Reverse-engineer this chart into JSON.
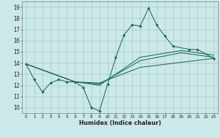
{
  "xlabel": "Humidex (Indice chaleur)",
  "bg_color": "#cce8e8",
  "line_color": "#1e6b5e",
  "grid_color": "#aacece",
  "xlim": [
    -0.5,
    23.5
  ],
  "ylim": [
    9.5,
    19.5
  ],
  "xticks": [
    0,
    1,
    2,
    3,
    4,
    5,
    6,
    7,
    8,
    9,
    10,
    11,
    12,
    13,
    14,
    15,
    16,
    17,
    18,
    19,
    20,
    21,
    22,
    23
  ],
  "yticks": [
    10,
    11,
    12,
    13,
    14,
    15,
    16,
    17,
    18,
    19
  ],
  "series0_x": [
    0,
    1,
    2,
    3,
    4,
    5,
    6,
    7,
    8,
    9,
    10,
    11,
    12,
    13,
    14,
    15,
    16,
    17,
    18,
    20,
    21,
    23
  ],
  "series0_y": [
    13.9,
    12.5,
    11.4,
    12.2,
    12.5,
    12.3,
    12.3,
    11.8,
    10.0,
    9.7,
    12.1,
    14.5,
    16.5,
    17.4,
    17.3,
    18.9,
    17.4,
    16.4,
    15.5,
    15.2,
    15.2,
    14.4
  ],
  "series1_x": [
    0,
    6,
    9,
    14,
    23
  ],
  "series1_y": [
    13.9,
    12.3,
    12.2,
    13.6,
    14.4
  ],
  "series2_x": [
    0,
    6,
    9,
    14,
    19,
    23
  ],
  "series2_y": [
    13.9,
    12.3,
    12.1,
    14.2,
    14.9,
    14.5
  ],
  "series3_x": [
    0,
    6,
    9,
    14,
    19,
    23
  ],
  "series3_y": [
    13.9,
    12.3,
    12.0,
    14.5,
    15.1,
    14.7
  ]
}
